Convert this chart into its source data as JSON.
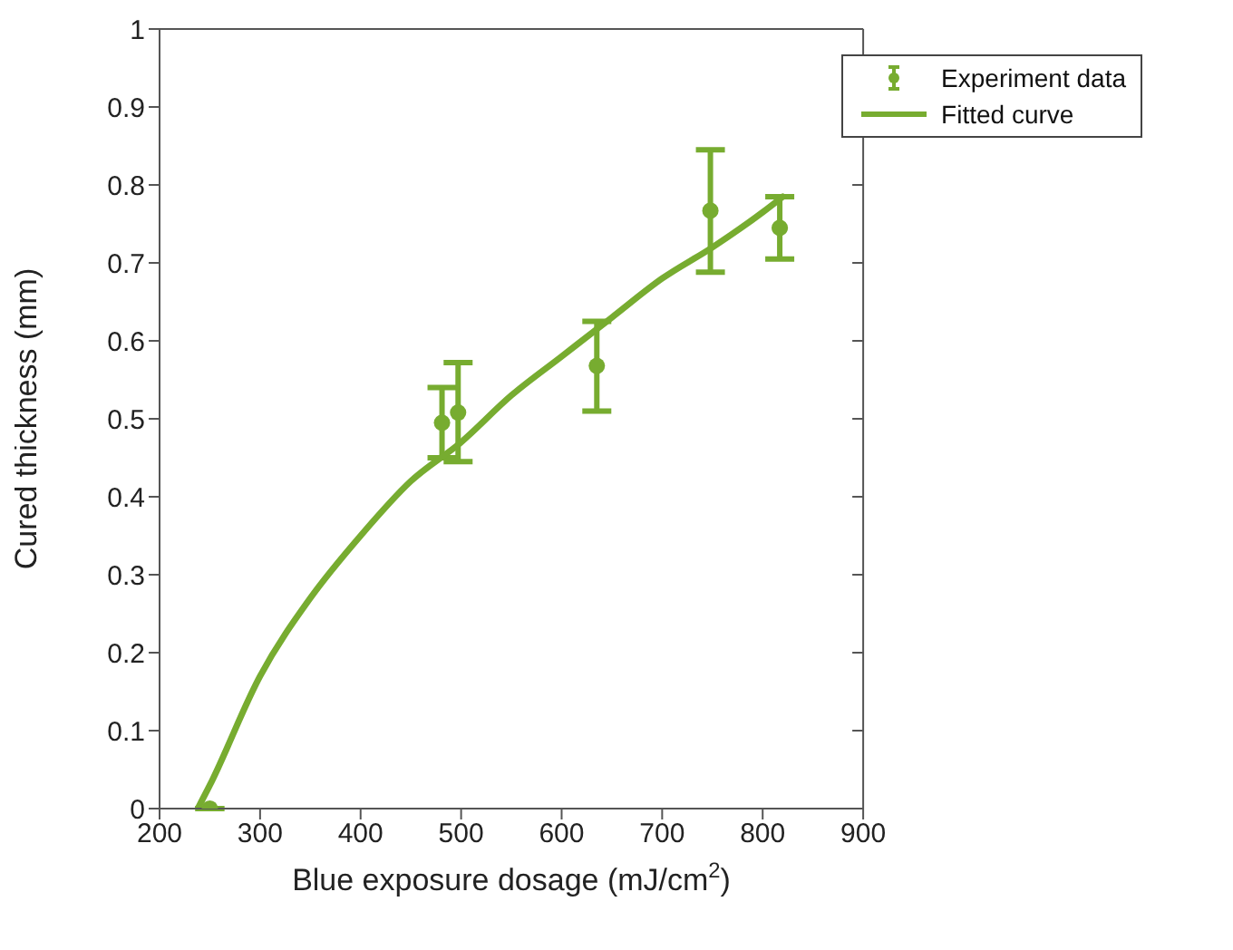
{
  "chart_data": {
    "type": "scatter",
    "xlabel": "Blue exposure dosage (mJ/cm$^{2}$)",
    "ylabel": "Cured thickness (mm)",
    "xlim": [
      200,
      900
    ],
    "xticks": [
      200,
      300,
      400,
      500,
      600,
      700,
      800,
      900
    ],
    "ylim": [
      0,
      1
    ],
    "yticks": [
      0,
      0.1,
      0.2,
      0.3,
      0.4,
      0.5,
      0.6,
      0.7,
      0.8,
      0.9,
      1
    ],
    "grid": false,
    "legend": "top right",
    "series": [
      {
        "name": "Experiment data",
        "color": "#77ac30",
        "marker": "circle",
        "x": [
          250,
          481,
          497,
          635,
          748,
          817
        ],
        "values": [
          0,
          0.495,
          0.508,
          0.568,
          0.767,
          0.745
        ],
        "errors": [
          null,
          [
            0.45,
            0.54
          ],
          [
            0.445,
            0.572
          ],
          [
            0.51,
            0.625
          ],
          [
            0.688,
            0.845
          ],
          [
            0.705,
            0.785
          ]
        ]
      },
      {
        "name": "Fitted curve",
        "type": "line",
        "color": "#77ac30",
        "marker": "none",
        "line_style": "solid",
        "x": [
          238,
          250,
          300,
          350,
          400,
          450,
          500,
          550,
          600,
          650,
          700,
          750,
          800,
          820
        ],
        "values": [
          0,
          0.03,
          0.17,
          0.27,
          0.35,
          0.42,
          0.47,
          0.53,
          0.58,
          0.63,
          0.68,
          0.72,
          0.765,
          0.785
        ]
      }
    ]
  }
}
